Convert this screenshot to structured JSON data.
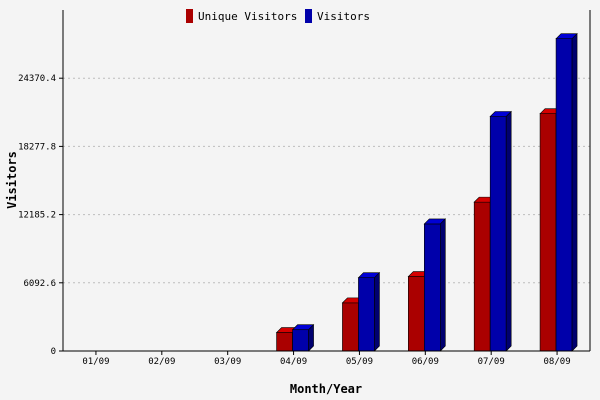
{
  "chart_data": {
    "type": "bar",
    "title": "",
    "xlabel": "Month/Year",
    "ylabel": "Visitors",
    "categories": [
      "01/09",
      "02/09",
      "03/09",
      "04/09",
      "05/09",
      "06/09",
      "07/09",
      "08/09"
    ],
    "series": [
      {
        "name": "Unique Visitors",
        "color": "#aa0000",
        "values": [
          0,
          0,
          0,
          1650,
          4300,
          6650,
          13300,
          21200
        ]
      },
      {
        "name": "Visitors",
        "color": "#0000aa",
        "values": [
          0,
          0,
          0,
          1900,
          6550,
          11350,
          20950,
          27900
        ]
      }
    ],
    "yticks": [
      "0",
      "6092.6",
      "12185.2",
      "18277.8",
      "24370.4"
    ],
    "ytick_values": [
      0,
      6092.6,
      12185.2,
      18277.8,
      24370.4
    ],
    "ylim": [
      0,
      30463
    ],
    "grid": "horizontal-dotted",
    "legend_position": "top-center"
  }
}
